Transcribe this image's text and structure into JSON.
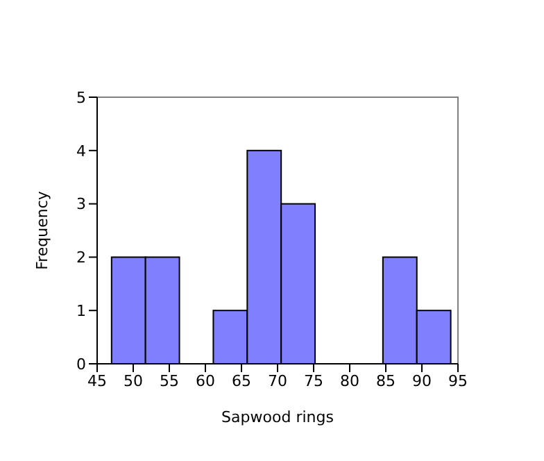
{
  "chart_data": {
    "type": "histogram",
    "xlabel": "Sapwood rings",
    "ylabel": "Frequency",
    "bins": [
      47,
      51.7,
      56.4,
      61.1,
      65.8,
      70.5,
      75.2,
      79.9,
      84.6,
      89.3,
      94
    ],
    "values": [
      2,
      2,
      0,
      1,
      4,
      3,
      0,
      0,
      2,
      1
    ],
    "color": "#8080ff",
    "xlim": [
      45,
      95
    ],
    "xticks": [
      45,
      50,
      55,
      60,
      65,
      70,
      75,
      80,
      85,
      90,
      95
    ],
    "ylim": [
      0,
      5
    ],
    "yticks": [
      0,
      1,
      2,
      3,
      4,
      5
    ]
  }
}
